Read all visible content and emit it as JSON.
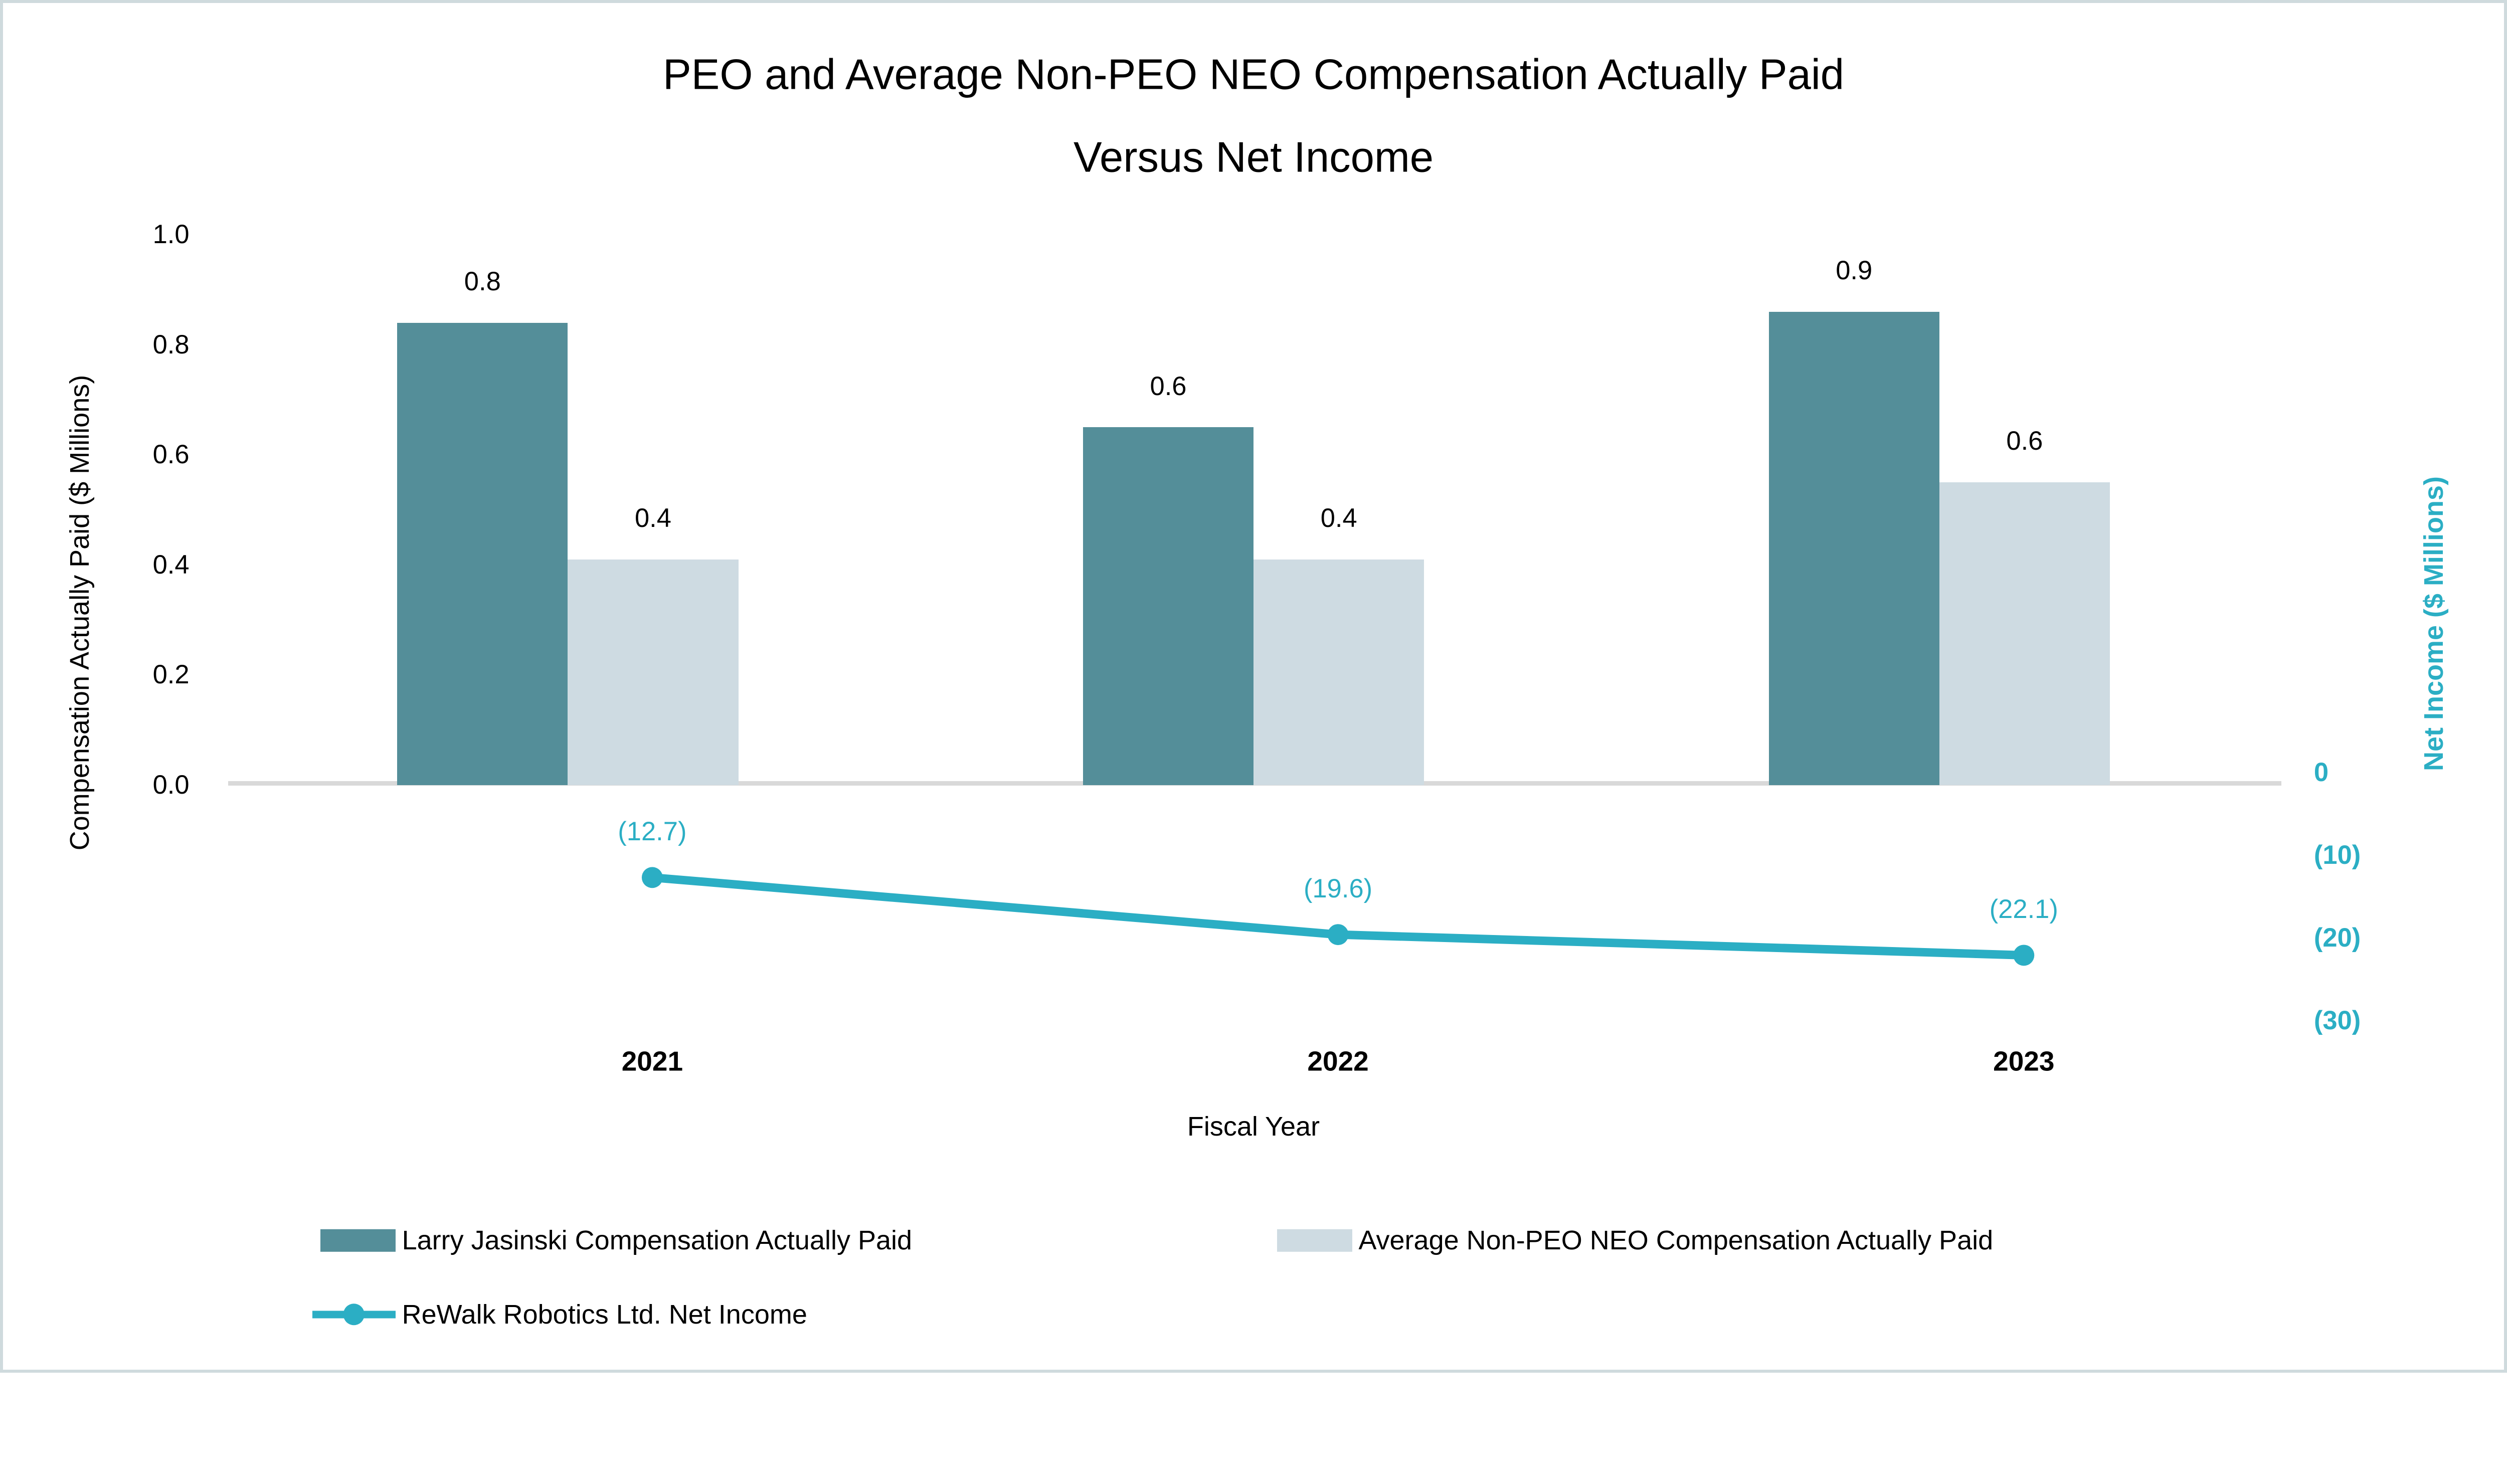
{
  "page": {
    "background": "#FFFFFF",
    "border_color": "#CFDADD"
  },
  "chart_data": {
    "type": "combo: clustered bar + line, dual y-axes",
    "title_line1": "PEO and Average Non-PEO NEO Compensation Actually Paid",
    "title_line2": "Versus Net Income",
    "categories": [
      "2021",
      "2022",
      "2023"
    ],
    "x_axis_title": "Fiscal Year",
    "left_axis": {
      "title": "Compensation Actually Paid ($ Millions)",
      "range": [
        0.0,
        1.0
      ],
      "tick_labels": [
        "1.0",
        "0.8",
        "0.6",
        "0.4",
        "0.2",
        "0.0"
      ],
      "tick_values": [
        1.0,
        0.8,
        0.6,
        0.4,
        0.2,
        0.0
      ]
    },
    "right_axis": {
      "title": "Net Income ($ Millions)",
      "range": [
        -30,
        0
      ],
      "tick_labels": [
        "0",
        "(10)",
        "(20)",
        "(30)"
      ],
      "tick_values": [
        0,
        -10,
        -20,
        -30
      ],
      "color": "#2BAEC4"
    },
    "bar_series": [
      {
        "name": "Larry Jasinski Compensation Actually Paid",
        "color": "#548E99",
        "values": [
          0.84,
          0.65,
          0.86
        ],
        "labels": [
          "0.8",
          "0.6",
          "0.9"
        ]
      },
      {
        "name": "Average Non-PEO NEO Compensation Actually Paid",
        "color": "#CEDBE2",
        "values": [
          0.41,
          0.41,
          0.55
        ],
        "labels": [
          "0.4",
          "0.4",
          "0.6"
        ]
      }
    ],
    "line_series": {
      "name": "ReWalk Robotics Ltd. Net Income",
      "color": "#2BAEC4",
      "values": [
        -12.7,
        -19.6,
        -22.1
      ],
      "labels": [
        "(12.7)",
        "(19.6)",
        "(22.1)"
      ]
    },
    "gridlines": "zero-baseline-only",
    "gridline_color": "#D9D9D9",
    "legend_position": "bottom-left"
  }
}
